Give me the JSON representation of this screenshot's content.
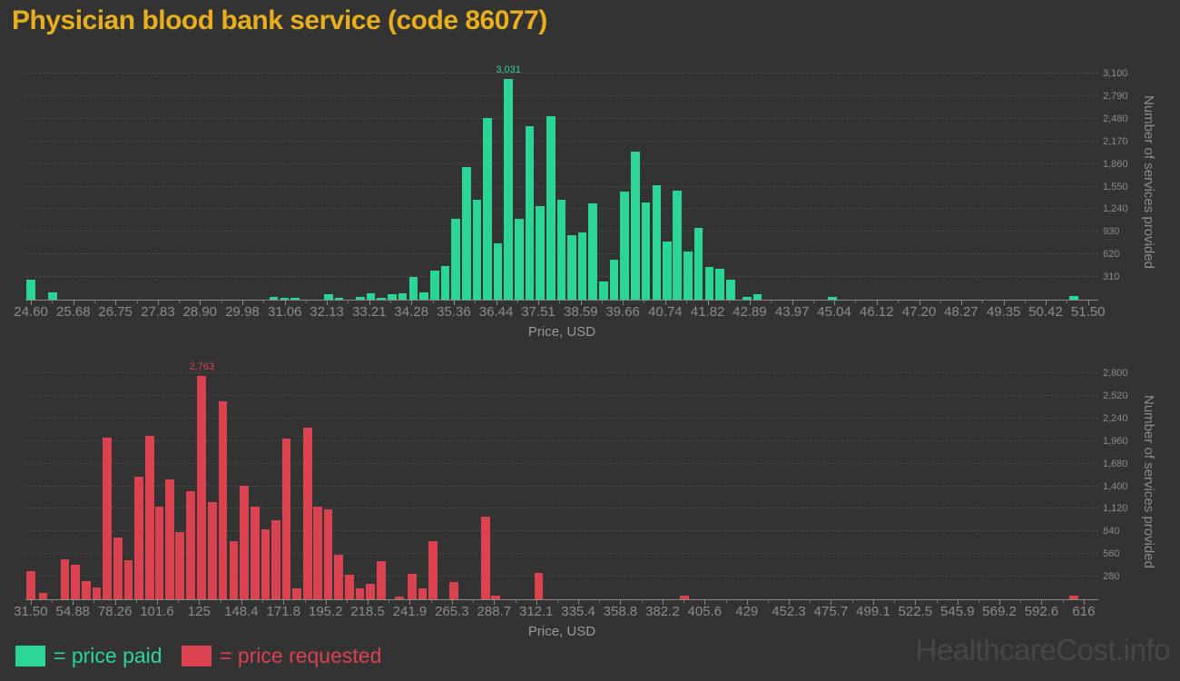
{
  "page": {
    "title": "Physician blood bank service (code 86077)",
    "watermark": "HealthcareCost.info"
  },
  "colors": {
    "background": "#333333",
    "title": "#E9AE1B",
    "paid": "#2BD596",
    "requested": "#DB4250",
    "grid": "#4B4B4B",
    "axis_line": "#8A8A8A",
    "tick_text": "#8C8C8C",
    "axis_title_text": "#9A9A9A",
    "watermark_text": "#474747"
  },
  "legend": {
    "paid_label": "= price paid",
    "requested_label": "= price requested"
  },
  "chart_data": [
    {
      "type": "bar",
      "name": "price paid",
      "color_key": "paid",
      "bar_name": "price-paid-bar",
      "xlabel": "Price, USD",
      "ylabel": "Number of services provided",
      "legend_entry": "= price paid",
      "grid": true,
      "x_ticks": [
        "24.60",
        "25.68",
        "26.75",
        "27.83",
        "28.90",
        "29.98",
        "31.06",
        "32.13",
        "33.21",
        "34.28",
        "35.36",
        "36.44",
        "37.51",
        "38.59",
        "39.66",
        "40.74",
        "41.82",
        "42.89",
        "43.97",
        "45.04",
        "46.12",
        "47.20",
        "48.27",
        "49.35",
        "50.42",
        "51.50"
      ],
      "x_range": [
        24.46,
        51.76
      ],
      "bin_width": 0.269,
      "y_ticks": [
        310,
        620,
        930,
        1240,
        1550,
        1860,
        2170,
        2480,
        2790,
        3100
      ],
      "y_tick_labels": [
        "310",
        "620",
        "930",
        "1,240",
        "1,550",
        "1,860",
        "2,170",
        "2,480",
        "2,790",
        "3,100"
      ],
      "y_max": 3237,
      "peak": {
        "label": "3,031",
        "x": 36.75,
        "value": 3031
      },
      "bars": [
        [
          24.6,
          270
        ],
        [
          25.15,
          95
        ],
        [
          30.78,
          40
        ],
        [
          31.05,
          25
        ],
        [
          31.32,
          25
        ],
        [
          32.17,
          70
        ],
        [
          32.44,
          30
        ],
        [
          32.98,
          35
        ],
        [
          33.25,
          85
        ],
        [
          33.52,
          20
        ],
        [
          33.79,
          70
        ],
        [
          34.06,
          85
        ],
        [
          34.33,
          310
        ],
        [
          34.6,
          95
        ],
        [
          34.87,
          395
        ],
        [
          35.14,
          455
        ],
        [
          35.41,
          1105
        ],
        [
          35.68,
          1820
        ],
        [
          35.95,
          1365
        ],
        [
          36.21,
          2490
        ],
        [
          36.48,
          775
        ],
        [
          36.75,
          3031
        ],
        [
          37.02,
          1105
        ],
        [
          37.29,
          2380
        ],
        [
          37.56,
          1280
        ],
        [
          37.83,
          2520
        ],
        [
          38.1,
          1375
        ],
        [
          38.37,
          885
        ],
        [
          38.63,
          920
        ],
        [
          38.9,
          1315
        ],
        [
          39.17,
          255
        ],
        [
          39.44,
          545
        ],
        [
          39.71,
          1485
        ],
        [
          39.98,
          2035
        ],
        [
          40.25,
          1330
        ],
        [
          40.52,
          1565
        ],
        [
          40.79,
          800
        ],
        [
          41.05,
          1490
        ],
        [
          41.32,
          660
        ],
        [
          41.59,
          985
        ],
        [
          41.86,
          450
        ],
        [
          42.13,
          420
        ],
        [
          42.4,
          270
        ],
        [
          42.82,
          40
        ],
        [
          43.09,
          80
        ],
        [
          45.0,
          40
        ],
        [
          51.13,
          45
        ]
      ]
    },
    {
      "type": "bar",
      "name": "price requested",
      "color_key": "requested",
      "bar_name": "price-requested-bar",
      "xlabel": "Price, USD",
      "ylabel": "Number of services provided",
      "legend_entry": "= price requested",
      "grid": true,
      "x_ticks": [
        "31.50",
        "54.88",
        "78.26",
        "101.6",
        "125",
        "148.4",
        "171.8",
        "195.2",
        "218.5",
        "241.9",
        "265.3",
        "288.7",
        "312.1",
        "335.4",
        "358.8",
        "382.2",
        "405.6",
        "429",
        "452.3",
        "475.7",
        "499.1",
        "522.5",
        "545.9",
        "569.2",
        "592.6",
        "616"
      ],
      "x_range": [
        28.55,
        624.1
      ],
      "bin_width": 5.845,
      "y_ticks": [
        280,
        560,
        840,
        1120,
        1400,
        1680,
        1960,
        2240,
        2520,
        2800
      ],
      "y_tick_labels": [
        "280",
        "560",
        "840",
        "1,120",
        "1,400",
        "1,680",
        "1,960",
        "2,240",
        "2,520",
        "2,800"
      ],
      "y_max": 2924,
      "peak": {
        "label": "2,763",
        "x": 126.4,
        "value": 2763
      },
      "bars": [
        [
          31.65,
          350
        ],
        [
          38.4,
          75
        ],
        [
          50.5,
          500
        ],
        [
          56.3,
          430
        ],
        [
          62.2,
          230
        ],
        [
          68.1,
          150
        ],
        [
          74.0,
          2000
        ],
        [
          79.9,
          770
        ],
        [
          85.8,
          480
        ],
        [
          91.6,
          1520
        ],
        [
          97.5,
          2030
        ],
        [
          102.9,
          1150
        ],
        [
          108.8,
          1480
        ],
        [
          114.3,
          830
        ],
        [
          120.2,
          1340
        ],
        [
          126.4,
          2763
        ],
        [
          132.3,
          1200
        ],
        [
          138.2,
          2450
        ],
        [
          144.1,
          720
        ],
        [
          149.9,
          1410
        ],
        [
          156.0,
          1150
        ],
        [
          161.9,
          870
        ],
        [
          167.7,
          980
        ],
        [
          173.5,
          1990
        ],
        [
          179.3,
          140
        ],
        [
          185.1,
          2130
        ],
        [
          190.9,
          1150
        ],
        [
          196.6,
          1110
        ],
        [
          202.5,
          550
        ],
        [
          208.4,
          300
        ],
        [
          214.3,
          130
        ],
        [
          220.1,
          190
        ],
        [
          226.0,
          470
        ],
        [
          236.1,
          30
        ],
        [
          243.3,
          310
        ],
        [
          249.0,
          130
        ],
        [
          254.9,
          720
        ],
        [
          266.3,
          210
        ],
        [
          284.0,
          1020
        ],
        [
          289.4,
          45
        ],
        [
          313.4,
          325
        ],
        [
          394.4,
          40
        ],
        [
          610.6,
          50
        ]
      ]
    }
  ]
}
